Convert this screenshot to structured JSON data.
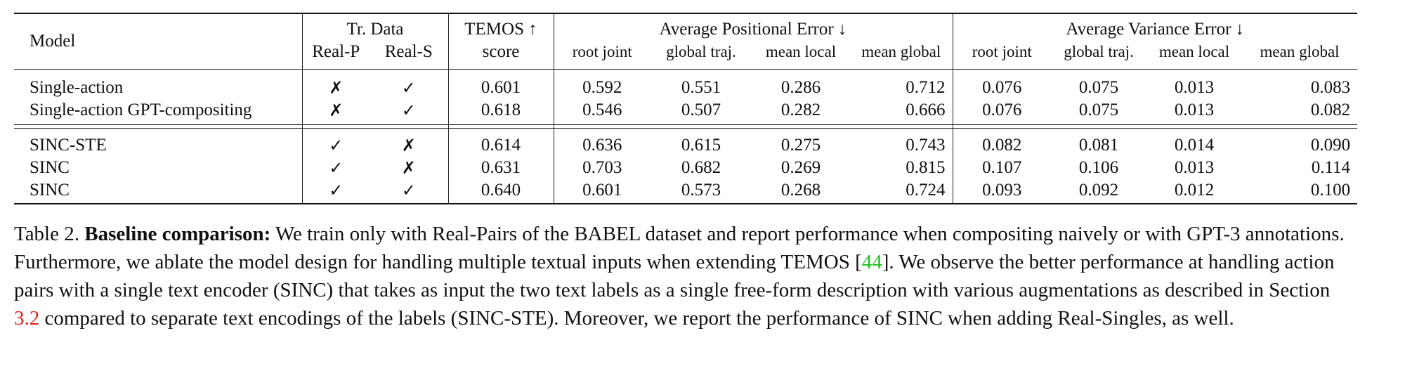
{
  "table": {
    "headers": {
      "model": "Model",
      "tr_data": "Tr. Data",
      "real_p": "Real-P",
      "real_s": "Real-S",
      "temos": "TEMOS ↑",
      "score": "score",
      "ape": "Average Positional Error ↓",
      "ave": "Average Variance Error ↓",
      "sub": [
        "root joint",
        "global traj.",
        "mean local",
        "mean global",
        "root joint",
        "global traj.",
        "mean local",
        "mean global"
      ]
    },
    "rows": [
      {
        "model": "Single-action",
        "real_p": "✗",
        "real_s": "✓",
        "temos": "0.601",
        "values": [
          "0.592",
          "0.551",
          "0.286",
          "0.712",
          "0.076",
          "0.075",
          "0.013",
          "0.083"
        ]
      },
      {
        "model": "Single-action GPT-compositing",
        "real_p": "✗",
        "real_s": "✓",
        "temos": "0.618",
        "values": [
          "0.546",
          "0.507",
          "0.282",
          "0.666",
          "0.076",
          "0.075",
          "0.013",
          "0.082"
        ]
      },
      {
        "model": "SINC-STE",
        "real_p": "✓",
        "real_s": "✗",
        "temos": "0.614",
        "values": [
          "0.636",
          "0.615",
          "0.275",
          "0.743",
          "0.082",
          "0.081",
          "0.014",
          "0.090"
        ]
      },
      {
        "model": "SINC",
        "real_p": "✓",
        "real_s": "✗",
        "temos": "0.631",
        "values": [
          "0.703",
          "0.682",
          "0.269",
          "0.815",
          "0.107",
          "0.106",
          "0.013",
          "0.114"
        ]
      },
      {
        "model": "SINC",
        "real_p": "✓",
        "real_s": "✓",
        "temos": "0.640",
        "values": [
          "0.601",
          "0.573",
          "0.268",
          "0.724",
          "0.093",
          "0.092",
          "0.012",
          "0.100"
        ]
      }
    ]
  },
  "caption": {
    "label": "Table 2.",
    "bold_title": "Baseline comparison:",
    "text1": " We train only with Real-Pairs of the BABEL dataset and report performance when compositing naively or with GPT-3 annotations. Furthermore, we ablate the model design for handling multiple textual inputs when extending TEMOS [",
    "ref1": "44",
    "text2": "]. We observe the better performance at handling action pairs with a single text encoder (SINC) that takes as input the two text labels as a single free-form description with various augmentations as described in Section ",
    "ref2": "3.2",
    "text3": " compared to separate text encodings of the labels (SINC-STE). Moreover, we report the performance of SINC when adding Real-Singles, as well."
  }
}
